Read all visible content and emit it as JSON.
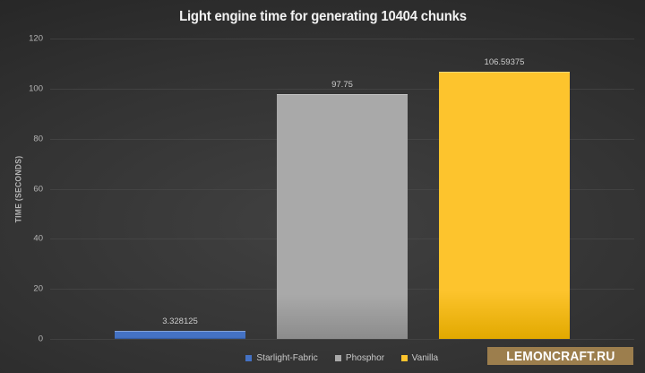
{
  "chart_data": {
    "type": "bar",
    "title": "Light engine time for generating 10404 chunks",
    "xlabel": "",
    "ylabel": "TIME (SECONDS)",
    "categories": [
      "Starlight-Fabric",
      "Phosphor",
      "Vanilla"
    ],
    "values": [
      3.328125,
      97.75,
      106.59375
    ],
    "value_labels": [
      "3.328125",
      "97.75",
      "106.59375"
    ],
    "series_colors": [
      "#4472C4",
      "#A9A9A9",
      "#FDC42D"
    ],
    "series_colors_dark": [
      "#2F5597",
      "#8C8C8C",
      "#E2A900"
    ],
    "ylim": [
      0,
      120
    ],
    "ytick_step": 20,
    "ytick_labels": [
      "0",
      "20",
      "40",
      "60",
      "80",
      "100",
      "120"
    ],
    "grid": true,
    "legend_position": "bottom"
  },
  "watermark": {
    "text": "LEMONCRAFT.RU",
    "bg_color": "#9C7E4D"
  },
  "theme": {
    "background_center": "#414141",
    "background_edge": "#1b1b1b",
    "gridline_color": "#4F4F4F",
    "tick_label_color": "#b5b5b5",
    "data_label_color": "#cccccc",
    "title_color": "#f2f2f2",
    "legend_label_color": "#c8c8c8"
  }
}
